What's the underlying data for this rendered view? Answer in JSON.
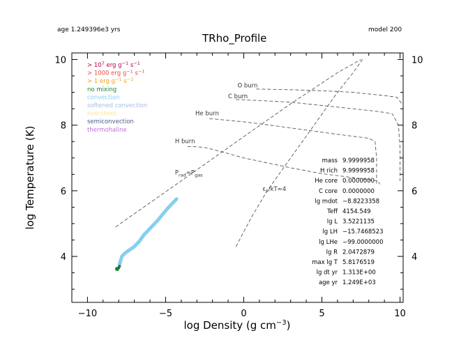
{
  "header": {
    "age_text": "age 1.249396e3 yrs",
    "model_text": "model 200"
  },
  "chart_data": {
    "type": "line",
    "title": "TRho_Profile",
    "xlabel": "log Density (g cm",
    "xlabel_sup": "−3",
    "xlabel_end": ")",
    "ylabel": "log Temperature (K)",
    "xlim": [
      -11.0,
      10.2
    ],
    "ylim": [
      2.6,
      10.2
    ],
    "x_ticks": [
      -10,
      -5,
      0,
      5,
      10
    ],
    "x_tick_labels": [
      "−10",
      "−5",
      "0",
      "5",
      "10"
    ],
    "y_ticks": [
      4,
      6,
      8,
      10
    ],
    "y_tick_labels": [
      "4",
      "6",
      "8",
      "10"
    ],
    "legend": [
      {
        "text": "> 10",
        "sup": "7",
        "rest": " erg g",
        "sup2": "−1",
        "rest2": " s",
        "sup3": "−1",
        "color": "#b0004a"
      },
      {
        "text": "> 1000 erg g",
        "sup": "−1",
        "rest": " s",
        "sup2": "−1",
        "color": "#e8493a"
      },
      {
        "text": "> 1 erg g",
        "sup": "−1",
        "rest": " s",
        "sup2": "−1",
        "color": "#f0a020"
      },
      {
        "text": "no mixing",
        "color": "#1f7f3a"
      },
      {
        "text": "convection",
        "color": "#87cef0"
      },
      {
        "text": "softened convection",
        "color": "#a6bde0"
      },
      {
        "text": "overshoot",
        "color": "#f5e6a0"
      },
      {
        "text": "semiconvection",
        "color": "#4a5a8a"
      },
      {
        "text": "thermohaline",
        "color": "#c070d8"
      }
    ],
    "burn_lines": [
      {
        "name": "H burn",
        "points": [
          [
            -3.6,
            7.35
          ],
          [
            -3.0,
            7.34
          ],
          [
            -2.5,
            7.32
          ],
          [
            -1.5,
            7.2
          ],
          [
            0.0,
            7.0
          ],
          [
            1.5,
            6.85
          ],
          [
            3.0,
            6.7
          ],
          [
            5.0,
            6.52
          ],
          [
            7.0,
            6.4
          ],
          [
            8.6,
            6.3
          ],
          [
            8.7,
            6.2
          ]
        ],
        "label": "H burn",
        "label_at": [
          -4.4,
          7.45
        ]
      },
      {
        "name": "He burn",
        "points": [
          [
            -2.2,
            8.2
          ],
          [
            0.0,
            8.1
          ],
          [
            2.0,
            7.98
          ],
          [
            4.0,
            7.85
          ],
          [
            6.0,
            7.72
          ],
          [
            8.0,
            7.6
          ],
          [
            8.4,
            7.5
          ],
          [
            8.5,
            7.0
          ],
          [
            8.5,
            6.2
          ]
        ],
        "label": "He burn",
        "label_at": [
          -3.1,
          8.3
        ]
      },
      {
        "name": "C burn",
        "points": [
          [
            -0.5,
            8.78
          ],
          [
            1.0,
            8.75
          ],
          [
            3.0,
            8.7
          ],
          [
            5.0,
            8.6
          ],
          [
            7.0,
            8.5
          ],
          [
            8.5,
            8.42
          ],
          [
            9.5,
            8.35
          ],
          [
            9.9,
            8.0
          ],
          [
            10.0,
            7.3
          ],
          [
            10.0,
            6.3
          ]
        ],
        "label": "C burn",
        "label_at": [
          -1.0,
          8.82
        ]
      },
      {
        "name": "O burn",
        "points": [
          [
            0.8,
            9.1
          ],
          [
            3.0,
            9.08
          ],
          [
            5.0,
            9.05
          ],
          [
            7.0,
            9.0
          ],
          [
            8.0,
            8.95
          ],
          [
            9.0,
            8.9
          ],
          [
            9.8,
            8.85
          ],
          [
            10.2,
            8.6
          ]
        ],
        "label": "O burn",
        "label_at": [
          -0.4,
          9.15
        ]
      }
    ],
    "diag_lines": [
      {
        "name": "Prad ≈ Pgas",
        "points": [
          [
            -8.2,
            4.9
          ],
          [
            -4.0,
            6.3
          ],
          [
            0.0,
            7.65
          ],
          [
            3.0,
            8.65
          ],
          [
            6.0,
            9.6
          ],
          [
            7.5,
            10.0
          ]
        ],
        "label": "P",
        "label_sub": "rad",
        "label_mid": "≈P",
        "label_sub2": "gas",
        "label_at": [
          -4.4,
          6.5
        ]
      },
      {
        "name": "εF/kT≈4",
        "points": [
          [
            -0.5,
            4.3
          ],
          [
            0.5,
            5.2
          ],
          [
            1.5,
            6.0
          ],
          [
            3.0,
            7.0
          ],
          [
            4.5,
            8.0
          ],
          [
            6.0,
            9.0
          ],
          [
            7.0,
            9.6
          ],
          [
            7.6,
            10.0
          ]
        ],
        "label": "ε",
        "label_sub": "F",
        "label_mid": "/kT≈4",
        "label_at": [
          1.2,
          6.0
        ]
      }
    ],
    "series": [
      {
        "name": "convection",
        "color": "#87cef0",
        "x": [
          -7.95,
          -7.8,
          -7.6,
          -7.3,
          -7.0,
          -6.7,
          -6.4,
          -6.1,
          -5.8,
          -5.5,
          -5.2,
          -4.9,
          -4.6,
          -4.3
        ],
        "y": [
          3.75,
          4.0,
          4.1,
          4.2,
          4.3,
          4.45,
          4.65,
          4.8,
          4.95,
          5.1,
          5.28,
          5.45,
          5.6,
          5.75
        ]
      },
      {
        "name": "no mixing",
        "color": "#1f7f3a",
        "x": [
          -8.1,
          -8.0,
          -7.95
        ],
        "y": [
          3.62,
          3.65,
          3.7
        ]
      }
    ],
    "info_panel": [
      {
        "label": "mass",
        "value": "9.9999958"
      },
      {
        "label": "H rich",
        "value": "9.9999958"
      },
      {
        "label": "He core",
        "value": "0.0000000"
      },
      {
        "label": "C core",
        "value": "0.0000000"
      },
      {
        "label": "lg mdot",
        "value": "−8.8223358"
      },
      {
        "label": "Teff",
        "value": "4154.549"
      },
      {
        "label": "lg L",
        "value": "3.5221135"
      },
      {
        "label": "lg LH",
        "value": "−15.7468523"
      },
      {
        "label": "lg LHe",
        "value": "−99.0000000"
      },
      {
        "label": "lg R",
        "value": "2.0472879"
      },
      {
        "label": "max lg T",
        "value": "5.8176519"
      },
      {
        "label": "lg dt yr",
        "value": "1.313E+00"
      },
      {
        "label": "age yr",
        "value": "1.249E+03"
      }
    ]
  }
}
